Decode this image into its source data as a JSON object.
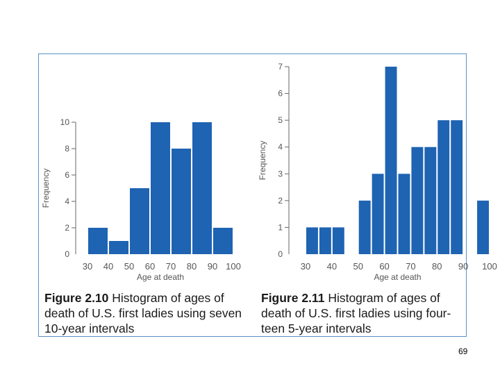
{
  "page_number": "69",
  "colors": {
    "bar": "#1f63b3",
    "axis": "#666666",
    "frame": "#5a8fc4"
  },
  "chart_data": [
    {
      "type": "bar",
      "title": "Histogram of ages of death of U.S. first ladies using seven 10-year intervals",
      "figure_label": "Figure 2.10",
      "caption": "Histogram of ages of death of U.S. first ladies using seven 10-year intervals",
      "xlabel": "Age at death",
      "ylabel": "Frequency",
      "bin_edges": [
        30,
        40,
        50,
        60,
        70,
        80,
        90,
        100
      ],
      "values": [
        2,
        1,
        5,
        10,
        8,
        10,
        2
      ],
      "xticks": [
        "30",
        "40",
        "50",
        "60",
        "70",
        "80",
        "90",
        "100"
      ],
      "yticks": [
        "0",
        "2",
        "4",
        "6",
        "8",
        "10"
      ],
      "ylim": [
        0,
        10
      ]
    },
    {
      "type": "bar",
      "title": "Histogram of ages of death of U.S. first ladies using fourteen 5-year intervals",
      "figure_label": "Figure 2.11",
      "caption": "Histogram of ages of death of U.S. first ladies using four-teen 5-year intervals",
      "xlabel": "Age at death",
      "ylabel": "Frequency",
      "bin_edges": [
        30,
        35,
        40,
        45,
        50,
        55,
        60,
        65,
        70,
        75,
        80,
        85,
        90,
        95,
        100
      ],
      "values": [
        1,
        1,
        1,
        0,
        2,
        3,
        7,
        3,
        4,
        4,
        5,
        5,
        0,
        2
      ],
      "xticks": [
        "30",
        "40",
        "50",
        "60",
        "70",
        "80",
        "90",
        "100"
      ],
      "yticks": [
        "0",
        "1",
        "2",
        "3",
        "4",
        "5",
        "6",
        "7"
      ],
      "ylim": [
        0,
        7
      ]
    }
  ]
}
